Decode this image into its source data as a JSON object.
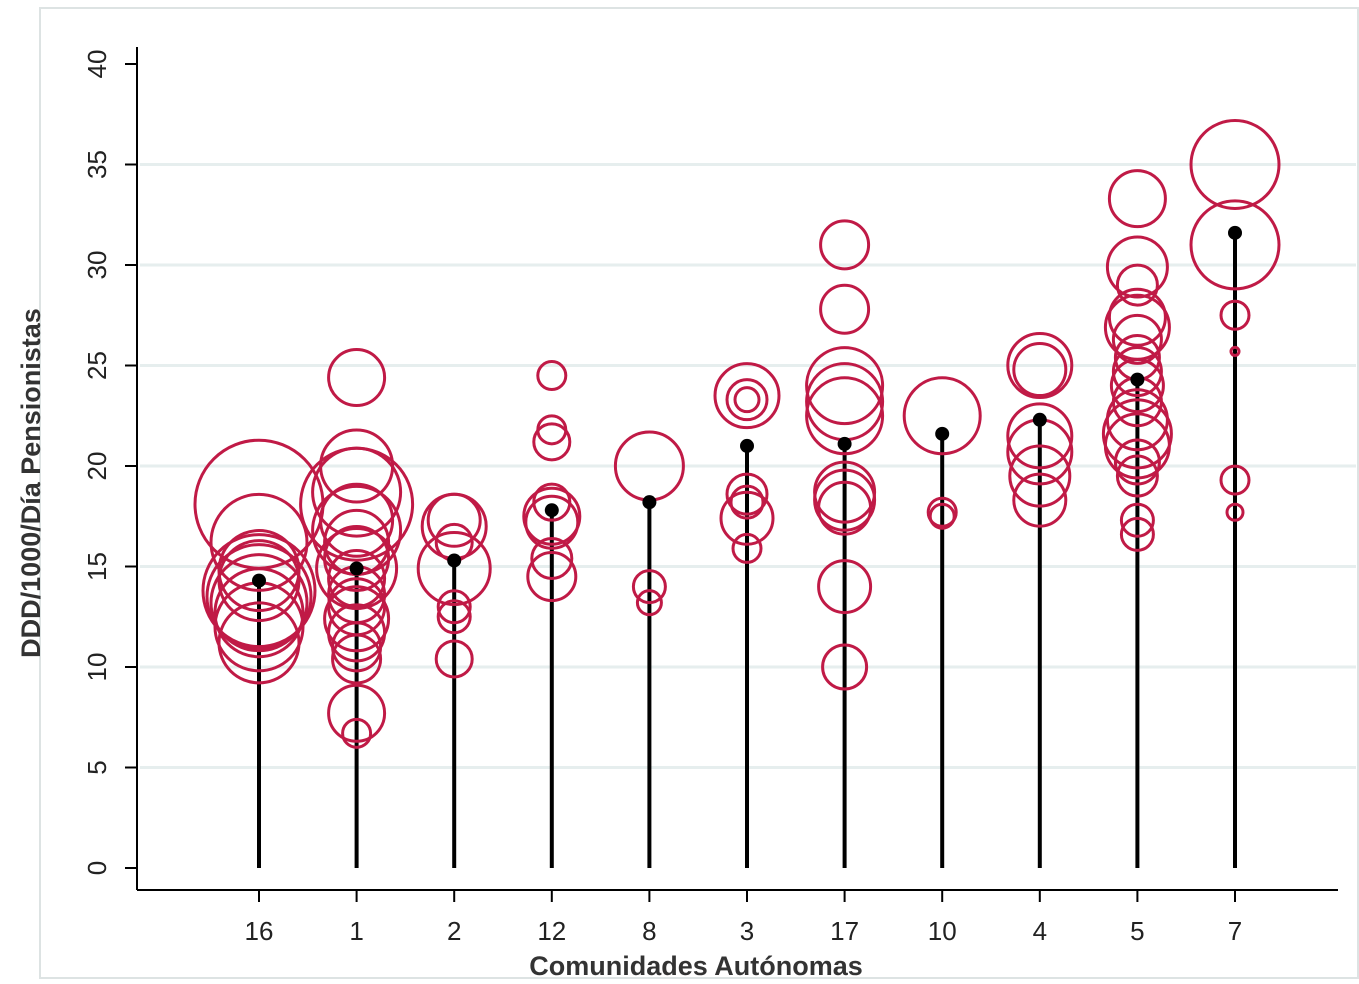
{
  "colors": {
    "background": "#ffffff",
    "border": "#dde3e3",
    "gridline": "#e6eeee",
    "axis": "#000000",
    "bubble": "#c01a46",
    "median_marker": "#000000"
  },
  "chart_data": {
    "type": "scatter",
    "title": "",
    "xlabel": "Comunidades Autónomas",
    "ylabel": "DDD/1000/Día Pensionistas",
    "ylim": [
      0,
      40
    ],
    "yticks": [
      0,
      5,
      10,
      15,
      20,
      25,
      30,
      35,
      40
    ],
    "ytick_labels": [
      "0",
      "5",
      "10",
      "15",
      "20",
      "25",
      "30",
      "35",
      "40"
    ],
    "categories": [
      "16",
      "1",
      "2",
      "12",
      "8",
      "3",
      "17",
      "10",
      "4",
      "5",
      "7"
    ],
    "grid": true,
    "legend": "none",
    "series": [
      {
        "marker": "hollow-circle",
        "size_encoding": "bubble area",
        "points": [
          {
            "x": "16",
            "y": 18.1,
            "r": 1.6
          },
          {
            "x": "16",
            "y": 16.2,
            "r": 1.2
          },
          {
            "x": "16",
            "y": 14.8,
            "r": 1.0
          },
          {
            "x": "16",
            "y": 14.3,
            "r": 1.0
          },
          {
            "x": "16",
            "y": 13.8,
            "r": 1.4
          },
          {
            "x": "16",
            "y": 13.5,
            "r": 1.3
          },
          {
            "x": "16",
            "y": 13.2,
            "r": 1.2
          },
          {
            "x": "16",
            "y": 12.7,
            "r": 1.1
          },
          {
            "x": "16",
            "y": 12.0,
            "r": 1.1
          },
          {
            "x": "16",
            "y": 11.2,
            "r": 1.0
          },
          {
            "x": "1",
            "y": 24.4,
            "r": 0.7
          },
          {
            "x": "1",
            "y": 20.0,
            "r": 0.9
          },
          {
            "x": "1",
            "y": 18.7,
            "r": 1.1
          },
          {
            "x": "1",
            "y": 18.1,
            "r": 1.4
          },
          {
            "x": "1",
            "y": 17.3,
            "r": 0.9
          },
          {
            "x": "1",
            "y": 16.8,
            "r": 1.1
          },
          {
            "x": "1",
            "y": 16.2,
            "r": 0.8
          },
          {
            "x": "1",
            "y": 15.4,
            "r": 0.8
          },
          {
            "x": "1",
            "y": 14.9,
            "r": 1.0
          },
          {
            "x": "1",
            "y": 14.4,
            "r": 0.7
          },
          {
            "x": "1",
            "y": 13.6,
            "r": 0.7
          },
          {
            "x": "1",
            "y": 13.0,
            "r": 0.7
          },
          {
            "x": "1",
            "y": 12.4,
            "r": 0.8
          },
          {
            "x": "1",
            "y": 11.7,
            "r": 0.7
          },
          {
            "x": "1",
            "y": 11.0,
            "r": 0.6
          },
          {
            "x": "1",
            "y": 10.4,
            "r": 0.6
          },
          {
            "x": "1",
            "y": 7.7,
            "r": 0.7
          },
          {
            "x": "1",
            "y": 6.7,
            "r": 0.35
          },
          {
            "x": "2",
            "y": 17.3,
            "r": 0.65
          },
          {
            "x": "2",
            "y": 17.0,
            "r": 0.8
          },
          {
            "x": "2",
            "y": 16.2,
            "r": 0.45
          },
          {
            "x": "2",
            "y": 14.9,
            "r": 0.9
          },
          {
            "x": "2",
            "y": 13.0,
            "r": 0.4
          },
          {
            "x": "2",
            "y": 12.5,
            "r": 0.4
          },
          {
            "x": "2",
            "y": 10.4,
            "r": 0.45
          },
          {
            "x": "12",
            "y": 24.5,
            "r": 0.35
          },
          {
            "x": "12",
            "y": 21.8,
            "r": 0.35
          },
          {
            "x": "12",
            "y": 21.2,
            "r": 0.45
          },
          {
            "x": "12",
            "y": 18.2,
            "r": 0.45
          },
          {
            "x": "12",
            "y": 17.5,
            "r": 0.7
          },
          {
            "x": "12",
            "y": 17.2,
            "r": 0.65
          },
          {
            "x": "12",
            "y": 15.4,
            "r": 0.5
          },
          {
            "x": "12",
            "y": 14.5,
            "r": 0.6
          },
          {
            "x": "8",
            "y": 20.0,
            "r": 0.85
          },
          {
            "x": "8",
            "y": 14.0,
            "r": 0.4
          },
          {
            "x": "8",
            "y": 13.2,
            "r": 0.3
          },
          {
            "x": "3",
            "y": 23.5,
            "r": 0.8
          },
          {
            "x": "3",
            "y": 23.3,
            "r": 0.5
          },
          {
            "x": "3",
            "y": 23.3,
            "r": 0.3
          },
          {
            "x": "3",
            "y": 18.6,
            "r": 0.5
          },
          {
            "x": "3",
            "y": 18.2,
            "r": 0.4
          },
          {
            "x": "3",
            "y": 17.4,
            "r": 0.65
          },
          {
            "x": "3",
            "y": 15.9,
            "r": 0.35
          },
          {
            "x": "17",
            "y": 31.0,
            "r": 0.6
          },
          {
            "x": "17",
            "y": 27.8,
            "r": 0.6
          },
          {
            "x": "17",
            "y": 24.0,
            "r": 0.95
          },
          {
            "x": "17",
            "y": 23.2,
            "r": 0.95
          },
          {
            "x": "17",
            "y": 22.5,
            "r": 0.95
          },
          {
            "x": "17",
            "y": 18.7,
            "r": 0.75
          },
          {
            "x": "17",
            "y": 18.3,
            "r": 0.75
          },
          {
            "x": "17",
            "y": 17.9,
            "r": 0.65
          },
          {
            "x": "17",
            "y": 14.0,
            "r": 0.65
          },
          {
            "x": "17",
            "y": 10.0,
            "r": 0.55
          },
          {
            "x": "10",
            "y": 22.5,
            "r": 0.95
          },
          {
            "x": "10",
            "y": 17.7,
            "r": 0.35
          },
          {
            "x": "10",
            "y": 17.5,
            "r": 0.3
          },
          {
            "x": "4",
            "y": 25.0,
            "r": 0.8
          },
          {
            "x": "4",
            "y": 24.8,
            "r": 0.65
          },
          {
            "x": "4",
            "y": 21.5,
            "r": 0.8
          },
          {
            "x": "4",
            "y": 20.7,
            "r": 0.8
          },
          {
            "x": "4",
            "y": 19.5,
            "r": 0.75
          },
          {
            "x": "4",
            "y": 18.3,
            "r": 0.65
          },
          {
            "x": "5",
            "y": 33.3,
            "r": 0.7
          },
          {
            "x": "5",
            "y": 29.9,
            "r": 0.75
          },
          {
            "x": "5",
            "y": 29.0,
            "r": 0.5
          },
          {
            "x": "5",
            "y": 27.4,
            "r": 0.7
          },
          {
            "x": "5",
            "y": 26.9,
            "r": 0.8
          },
          {
            "x": "5",
            "y": 26.3,
            "r": 0.6
          },
          {
            "x": "5",
            "y": 25.4,
            "r": 0.55
          },
          {
            "x": "5",
            "y": 24.7,
            "r": 0.6
          },
          {
            "x": "5",
            "y": 24.0,
            "r": 0.65
          },
          {
            "x": "5",
            "y": 23.2,
            "r": 0.6
          },
          {
            "x": "5",
            "y": 22.3,
            "r": 0.75
          },
          {
            "x": "5",
            "y": 21.6,
            "r": 0.85
          },
          {
            "x": "5",
            "y": 21.0,
            "r": 0.8
          },
          {
            "x": "5",
            "y": 20.2,
            "r": 0.55
          },
          {
            "x": "5",
            "y": 19.5,
            "r": 0.5
          },
          {
            "x": "5",
            "y": 17.3,
            "r": 0.4
          },
          {
            "x": "5",
            "y": 16.6,
            "r": 0.4
          },
          {
            "x": "7",
            "y": 35.0,
            "r": 1.1
          },
          {
            "x": "7",
            "y": 31.0,
            "r": 1.1
          },
          {
            "x": "7",
            "y": 27.5,
            "r": 0.35
          },
          {
            "x": "7",
            "y": 25.7,
            "r": 0.1
          },
          {
            "x": "7",
            "y": 19.3,
            "r": 0.35
          },
          {
            "x": "7",
            "y": 17.7,
            "r": 0.2
          }
        ]
      },
      {
        "marker": "filled-dot-with-spike",
        "categories": [
          "16",
          "1",
          "2",
          "12",
          "8",
          "3",
          "17",
          "10",
          "4",
          "5",
          "7"
        ],
        "values": [
          14.3,
          14.9,
          15.3,
          17.8,
          18.2,
          21.0,
          21.1,
          21.6,
          22.3,
          24.3,
          31.6
        ]
      }
    ]
  }
}
